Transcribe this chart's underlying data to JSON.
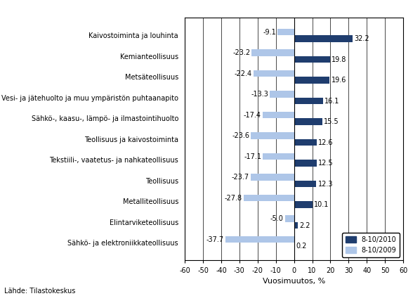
{
  "categories": [
    "Kaivostoiminta ja louhinta",
    "Kemianteollisuus",
    "Metsäteollisuus",
    "Vesi- ja jätehuolto ja muu ympäristön puhtaanapito",
    "Sähkö-, kaasu-, lämpö- ja ilmastointihuolto",
    "Teollisuus ja kaivostoiminta",
    "Tekstiili-, vaatetus- ja nahkateollisuus",
    "Teollisuus",
    "Metalliteollisuus",
    "Elintarviketeollisuus",
    "Sähkö- ja elektroniikkateollisuus"
  ],
  "values_2010": [
    32.2,
    19.8,
    19.6,
    16.1,
    15.5,
    12.6,
    12.5,
    12.3,
    10.1,
    2.2,
    0.2
  ],
  "values_2009": [
    -9.1,
    -23.2,
    -22.4,
    -13.3,
    -17.4,
    -23.6,
    -17.1,
    -23.7,
    -27.8,
    -5.0,
    -37.7
  ],
  "color_2010": "#1f3d6e",
  "color_2009": "#aec6e8",
  "xlabel": "Vuosimuutos, %",
  "xlim": [
    -60,
    60
  ],
  "xticks": [
    -60,
    -50,
    -40,
    -30,
    -20,
    -10,
    0,
    10,
    20,
    30,
    40,
    50,
    60
  ],
  "legend_2010": "8-10/2010",
  "legend_2009": "8-10/2009",
  "source": "Lähde: Tilastokeskus",
  "bar_height": 0.32,
  "label_fontsize": 7.0,
  "tick_fontsize": 7.0,
  "xlabel_fontsize": 8.0
}
